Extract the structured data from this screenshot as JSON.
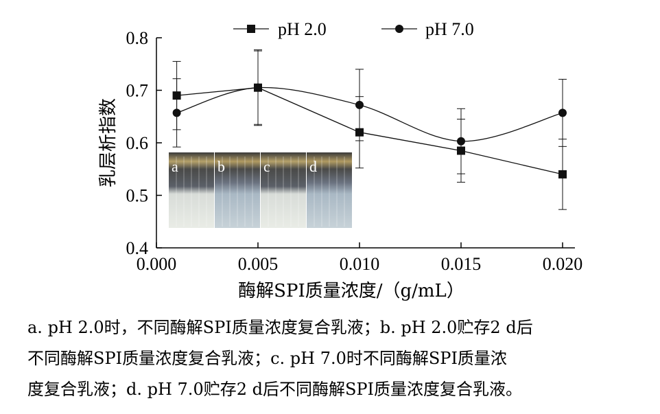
{
  "chart_data": {
    "type": "line",
    "x": [
      0.001,
      0.005,
      0.01,
      0.015,
      0.02
    ],
    "xlabel": "酶解SPI质量浓度/（g/mL）",
    "ylabel": "乳层析指数",
    "xlim": [
      0.0,
      0.02
    ],
    "ylim": [
      0.4,
      0.8
    ],
    "xticks": [
      "0.000",
      "0.005",
      "0.010",
      "0.015",
      "0.020"
    ],
    "yticks": [
      "0.4",
      "0.5",
      "0.6",
      "0.7",
      "0.8"
    ],
    "legend_position": "top",
    "series": [
      {
        "name": "pH 2.0",
        "marker": "square",
        "color": "#111111",
        "values": [
          0.69,
          0.705,
          0.62,
          0.585,
          0.54
        ],
        "errors": [
          0.065,
          0.07,
          0.068,
          0.06,
          0.067
        ]
      },
      {
        "name": "pH 7.0",
        "marker": "circle",
        "color": "#111111",
        "values": [
          0.657,
          0.705,
          0.672,
          0.603,
          0.657
        ],
        "errors": [
          0.065,
          0.072,
          0.068,
          0.062,
          0.064
        ]
      }
    ],
    "inset_labels": [
      "a",
      "b",
      "c",
      "d"
    ]
  },
  "caption": [
    "a. pH 2.0时，不同酶解SPI质量浓度复合乳液；b. pH 2.0贮存2 d后",
    "不同酶解SPI质量浓度复合乳液；c. pH 7.0时不同酶解SPI质量浓",
    "度复合乳液；d. pH 7.0贮存2 d后不同酶解SPI质量浓度复合乳液。"
  ]
}
